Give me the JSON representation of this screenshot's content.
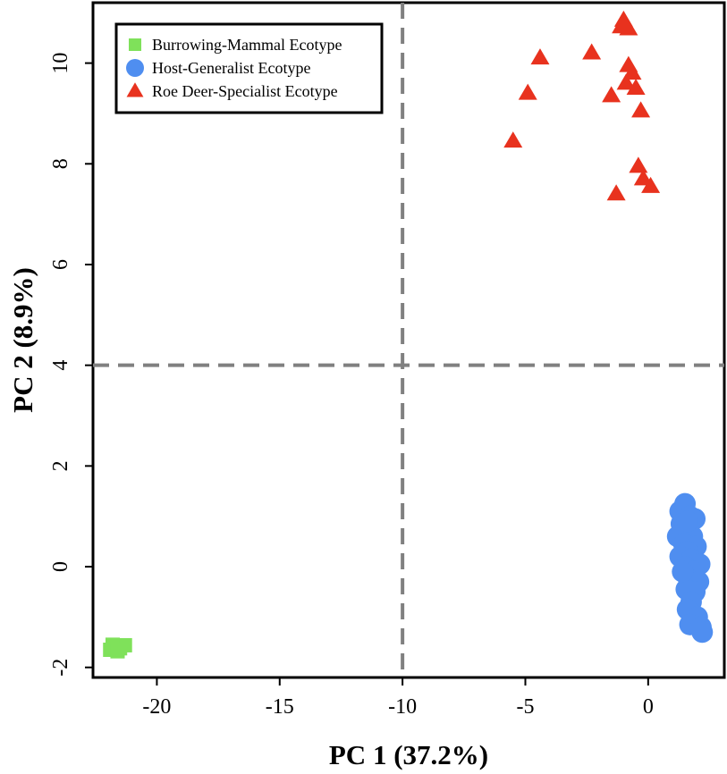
{
  "chart_data": {
    "type": "scatter",
    "title": "",
    "xlabel": "PC 1 (37.2%)",
    "ylabel": "PC 2 (8.9%)",
    "xlim": [
      -22.6,
      3.1
    ],
    "ylim": [
      -2.2,
      11.2
    ],
    "xticks": [
      -20,
      -15,
      -10,
      -5,
      0
    ],
    "yticks": [
      -2,
      0,
      2,
      4,
      6,
      8,
      10
    ],
    "grid": false,
    "reference_lines": {
      "x": -10,
      "y": 4,
      "style": "dashed",
      "color": "#808080"
    },
    "legend_position": "top-left",
    "series": [
      {
        "name": "Burrowing-Mammal Ecotype",
        "marker": "square",
        "color": "#7FE15A",
        "points": [
          [
            -21.9,
            -1.65
          ],
          [
            -21.7,
            -1.6
          ],
          [
            -21.5,
            -1.62
          ],
          [
            -21.3,
            -1.56
          ],
          [
            -21.8,
            -1.55
          ],
          [
            -21.6,
            -1.68
          ]
        ]
      },
      {
        "name": "Host-Generalist Ecotype",
        "marker": "circle",
        "color": "#4F8EF0",
        "points": [
          [
            1.3,
            1.1
          ],
          [
            1.5,
            1.25
          ],
          [
            1.7,
            1.0
          ],
          [
            1.9,
            0.95
          ],
          [
            1.35,
            0.85
          ],
          [
            1.55,
            0.75
          ],
          [
            1.2,
            0.6
          ],
          [
            1.8,
            0.6
          ],
          [
            1.45,
            0.45
          ],
          [
            1.95,
            0.4
          ],
          [
            1.6,
            0.3
          ],
          [
            1.3,
            0.2
          ],
          [
            1.75,
            0.15
          ],
          [
            2.1,
            0.05
          ],
          [
            1.5,
            0.0
          ],
          [
            1.85,
            -0.1
          ],
          [
            1.65,
            -0.25
          ],
          [
            2.05,
            -0.3
          ],
          [
            1.55,
            -0.45
          ],
          [
            1.9,
            -0.5
          ],
          [
            1.75,
            -0.7
          ],
          [
            1.6,
            -0.85
          ],
          [
            2.0,
            -1.0
          ],
          [
            1.7,
            -1.15
          ],
          [
            2.15,
            -1.2
          ],
          [
            2.2,
            -1.3
          ],
          [
            1.4,
            -0.1
          ],
          [
            1.6,
            0.9
          ]
        ]
      },
      {
        "name": "Roe Deer-Specialist Ecotype",
        "marker": "triangle",
        "color": "#E8321E",
        "points": [
          [
            -1.0,
            10.85
          ],
          [
            -1.1,
            10.72
          ],
          [
            -0.8,
            10.68
          ],
          [
            -2.3,
            10.2
          ],
          [
            -4.4,
            10.1
          ],
          [
            -0.8,
            9.95
          ],
          [
            -0.65,
            9.8
          ],
          [
            -0.9,
            9.6
          ],
          [
            -0.5,
            9.5
          ],
          [
            -4.9,
            9.4
          ],
          [
            -1.5,
            9.35
          ],
          [
            -0.3,
            9.05
          ],
          [
            -5.5,
            8.45
          ],
          [
            -0.4,
            7.95
          ],
          [
            -0.2,
            7.7
          ],
          [
            0.1,
            7.55
          ],
          [
            -1.3,
            7.4
          ]
        ]
      }
    ]
  }
}
